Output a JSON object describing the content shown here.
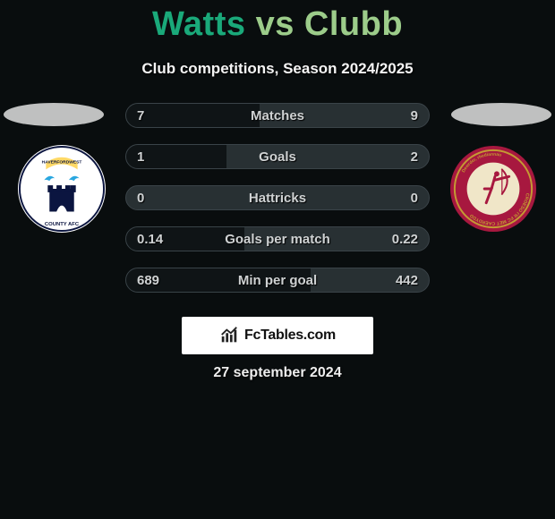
{
  "background_color": "#090d0e",
  "title": {
    "player1": "Watts",
    "vs": "vs",
    "player2": "Clubb",
    "color1": "#1aa97a",
    "color2": "#9ccc8a",
    "fontsize": 38
  },
  "subtitle": "Club competitions, Season 2024/2025",
  "platform_color": "#bfc0c0",
  "stat_bar": {
    "empty_bg": "#283033",
    "fill_bg": "#0f1416",
    "border": "#3a4348",
    "text_color": "#cfd2d3",
    "height": 28,
    "radius": 14,
    "gap": 18,
    "fontsize": 15
  },
  "stats": [
    {
      "label": "Matches",
      "v1": "7",
      "v2": "9",
      "fill_pct": 44
    },
    {
      "label": "Goals",
      "v1": "1",
      "v2": "2",
      "fill_pct": 33
    },
    {
      "label": "Hattricks",
      "v1": "0",
      "v2": "0",
      "fill_pct": 0
    },
    {
      "label": "Goals per match",
      "v1": "0.14",
      "v2": "0.22",
      "fill_pct": 39
    },
    {
      "label": "Min per goal",
      "v1": "689",
      "v2": "442",
      "fill_pct": 61
    }
  ],
  "badge_left": {
    "bg": "#ffffff",
    "castle": "#0b1540",
    "bird": "#2aa7e0",
    "banner": "#ffd966",
    "text": "HAVERFORDWEST COUNTY AFC"
  },
  "badge_right": {
    "outer": "#a7183f",
    "gold": "#c49a33",
    "inner": "#f0e6c8",
    "archer": "#a7183f",
    "text": "CROESO I'R FC MET CAERDYDD"
  },
  "brand": {
    "bg": "#ffffff",
    "icon_color": "#222222",
    "text": "FcTables.com",
    "fontsize": 16
  },
  "date": "27 september 2024"
}
